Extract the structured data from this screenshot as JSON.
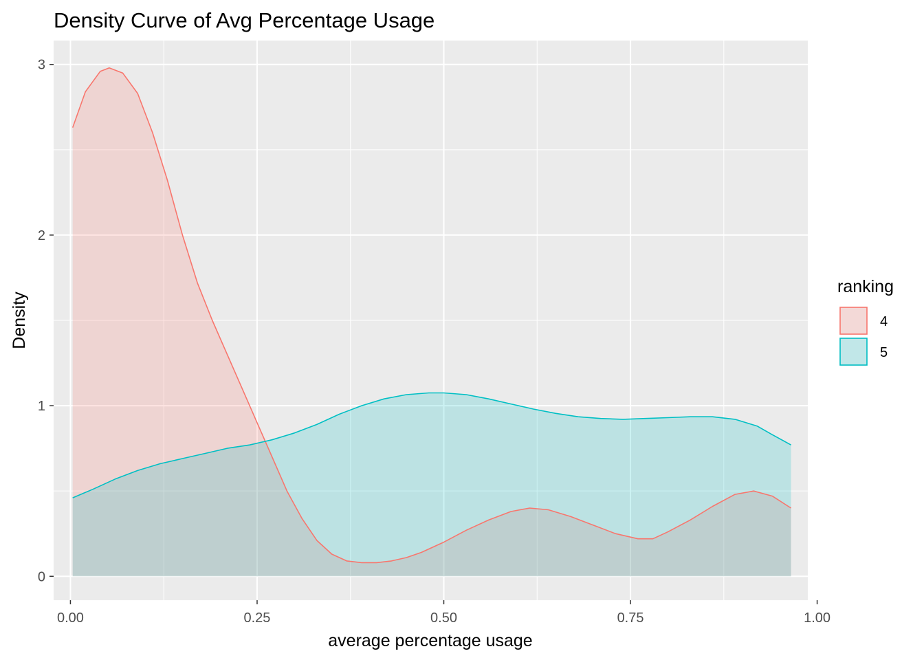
{
  "chart_data": {
    "type": "area",
    "title": "Density Curve of Avg Percentage Usage",
    "xlabel": "average percentage usage",
    "ylabel": "Density",
    "xlim": [
      -0.0225,
      0.9875
    ],
    "ylim": [
      -0.14,
      3.14
    ],
    "x_ticks": [
      0.0,
      0.25,
      0.5,
      0.75,
      1.0
    ],
    "x_tick_labels": [
      "0.00",
      "0.25",
      "0.50",
      "0.75",
      "1.00"
    ],
    "y_ticks": [
      0,
      1,
      2,
      3
    ],
    "y_tick_labels": [
      "0",
      "1",
      "2",
      "3"
    ],
    "grid": true,
    "legend": {
      "title": "ranking",
      "position": "right"
    },
    "series": [
      {
        "name": "4",
        "color": "#F8766D",
        "fill": "rgba(248,118,109,0.2)",
        "x": [
          0.003,
          0.02,
          0.04,
          0.052,
          0.07,
          0.09,
          0.11,
          0.13,
          0.15,
          0.17,
          0.19,
          0.21,
          0.23,
          0.25,
          0.27,
          0.29,
          0.31,
          0.33,
          0.35,
          0.37,
          0.39,
          0.41,
          0.43,
          0.45,
          0.47,
          0.5,
          0.53,
          0.56,
          0.59,
          0.615,
          0.64,
          0.67,
          0.7,
          0.73,
          0.76,
          0.78,
          0.8,
          0.83,
          0.86,
          0.89,
          0.915,
          0.94,
          0.965
        ],
        "y": [
          2.63,
          2.84,
          2.96,
          2.98,
          2.95,
          2.83,
          2.6,
          2.32,
          2.0,
          1.72,
          1.5,
          1.3,
          1.1,
          0.9,
          0.7,
          0.5,
          0.34,
          0.21,
          0.13,
          0.09,
          0.08,
          0.08,
          0.09,
          0.11,
          0.14,
          0.2,
          0.27,
          0.33,
          0.38,
          0.4,
          0.39,
          0.35,
          0.3,
          0.25,
          0.22,
          0.22,
          0.26,
          0.33,
          0.41,
          0.48,
          0.5,
          0.47,
          0.4
        ]
      },
      {
        "name": "5",
        "color": "#00BFC4",
        "fill": "rgba(0,191,196,0.2)",
        "x": [
          0.003,
          0.03,
          0.06,
          0.09,
          0.12,
          0.15,
          0.18,
          0.21,
          0.24,
          0.27,
          0.3,
          0.33,
          0.36,
          0.39,
          0.42,
          0.45,
          0.48,
          0.5,
          0.53,
          0.56,
          0.59,
          0.62,
          0.65,
          0.68,
          0.71,
          0.74,
          0.77,
          0.8,
          0.83,
          0.86,
          0.89,
          0.92,
          0.94,
          0.965
        ],
        "y": [
          0.46,
          0.51,
          0.57,
          0.62,
          0.66,
          0.69,
          0.72,
          0.75,
          0.77,
          0.8,
          0.84,
          0.89,
          0.95,
          1.0,
          1.04,
          1.065,
          1.075,
          1.075,
          1.065,
          1.04,
          1.01,
          0.98,
          0.955,
          0.935,
          0.925,
          0.92,
          0.925,
          0.93,
          0.935,
          0.935,
          0.92,
          0.88,
          0.83,
          0.77
        ]
      }
    ]
  }
}
